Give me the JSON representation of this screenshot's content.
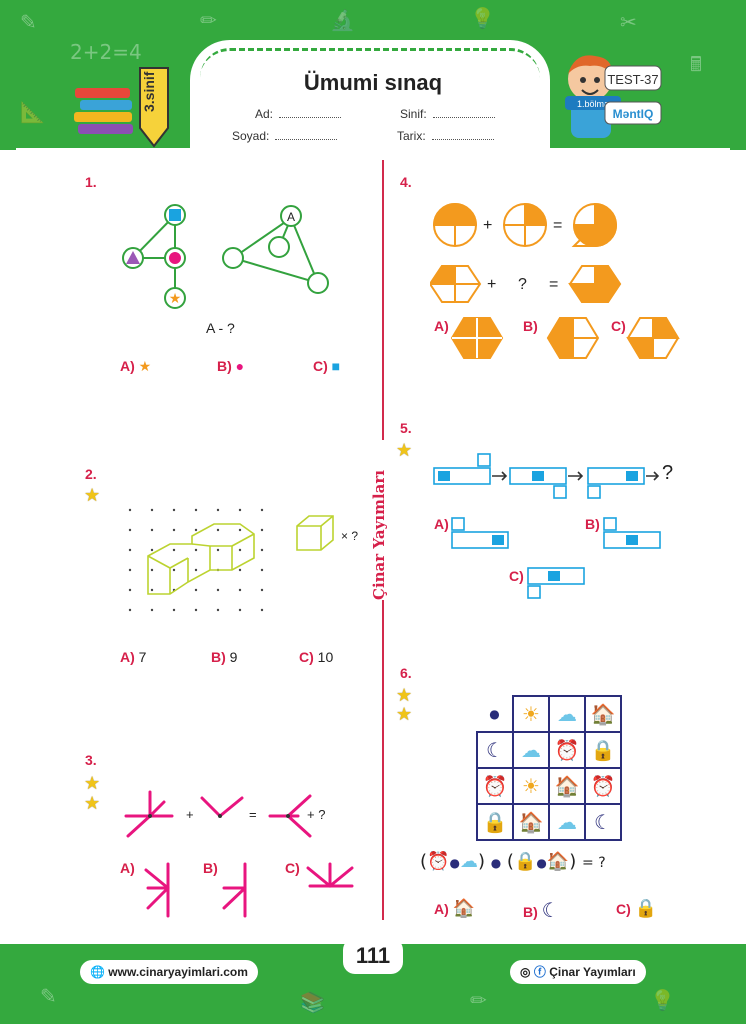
{
  "header": {
    "title": "Ümumi sınaq",
    "grade_badge": "3.sinif",
    "fields": {
      "ad": "Ad:",
      "soyad": "Soyad:",
      "sinif": "Sinif:",
      "tarix": "Tarix:"
    },
    "test_label": "TEST-37",
    "section_label": "1.bölmə",
    "brand_label": "MəntIQ"
  },
  "q1": {
    "number": "1.",
    "prompt": "A - ?",
    "options": [
      {
        "label": "A)",
        "shape": "star"
      },
      {
        "label": "B)",
        "shape": "circle"
      },
      {
        "label": "C)",
        "shape": "square"
      }
    ]
  },
  "q2": {
    "number": "2.",
    "suffix": "× ?",
    "options": [
      {
        "label": "A)",
        "value": "7"
      },
      {
        "label": "B)",
        "value": "9"
      },
      {
        "label": "C)",
        "value": "10"
      }
    ]
  },
  "q3": {
    "number": "3.",
    "plus": "+",
    "equals": "=",
    "plus2": "+ ?",
    "options": [
      "A)",
      "B)",
      "C)"
    ]
  },
  "q4": {
    "number": "4.",
    "plus": "+",
    "equals": "=",
    "question": "?",
    "options": [
      "A)",
      "B)",
      "C)"
    ]
  },
  "q5": {
    "number": "5.",
    "question": "?",
    "options": [
      "A)",
      "B)",
      "C)"
    ]
  },
  "q6": {
    "number": "6.",
    "grid": [
      [
        "●",
        "☀",
        "☁",
        "🏠"
      ],
      [
        "☾",
        "☁",
        "⏰",
        "🔒"
      ],
      [
        "⏰",
        "☀",
        "🏠",
        "⏰"
      ],
      [
        "🔒",
        "🏠",
        "☁",
        "☾"
      ]
    ],
    "equation_end": "= ?",
    "options": [
      {
        "label": "A)",
        "icon": "🏠"
      },
      {
        "label": "B)",
        "icon": "☾"
      },
      {
        "label": "C)",
        "icon": "🔒"
      }
    ]
  },
  "side_brand": "Çinar Yayımları",
  "page_number": "111",
  "footer": {
    "website": "www.cinaryayimlari.com",
    "social": "Çinar Yayımları"
  },
  "colors": {
    "green": "#34a93e",
    "red": "#d6204a",
    "orange": "#f39a1e",
    "blue": "#1aa3e0",
    "magenta": "#e8157f"
  }
}
